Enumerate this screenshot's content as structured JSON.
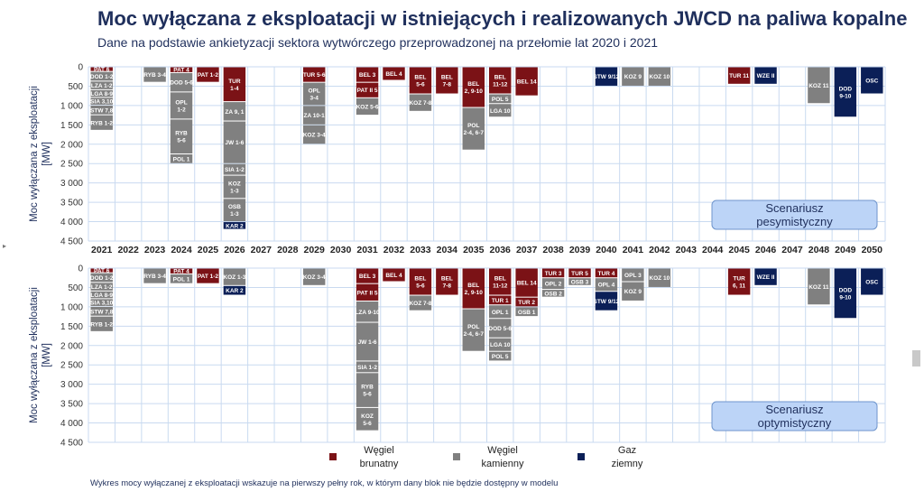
{
  "title": "Moc wyłączana z eksploatacji w istniejących i realizowanych JWCD na paliwa kopalne",
  "subtitle": "Dane na podstawie ankietyzacji sektora wytwórczego przeprowadzonej na przełomie lat 2020 i 2021",
  "footnote": "Wykres mocy wyłączanej z eksploatacji wskazuje na pierwszy pełny rok, w którym dany blok nie będzie dostępny w modelu",
  "colors": {
    "brunatny": "#7b1216",
    "kamienny": "#808080",
    "gaz": "#0b1f57",
    "grid": "#c9daf0",
    "scenario_box": "#bcd4f7"
  },
  "legend": [
    {
      "key": "brunatny",
      "label_line1": "Węgiel",
      "label_line2": "brunatny"
    },
    {
      "key": "kamienny",
      "label_line1": "Węgiel",
      "label_line2": "kamienny"
    },
    {
      "key": "gaz",
      "label_line1": "Gaz",
      "label_line2": "ziemny"
    }
  ],
  "chart_data": [
    {
      "type": "bar",
      "subtype": "stacked",
      "scenario_line1": "Scenariusz",
      "scenario_line2": "pesymistyczny",
      "ylabel_line1": "Moc wyłączana z eksploatacji",
      "ylabel_line2": "[MW]",
      "ylim": [
        0,
        4500
      ],
      "y_inverted": true,
      "yticks": [
        "0",
        "500",
        "1 000",
        "1 500",
        "2 000",
        "2 500",
        "3 000",
        "3 500",
        "4 000",
        "4 500"
      ],
      "categories": [
        "2021",
        "2022",
        "2023",
        "2024",
        "2025",
        "2026",
        "2027",
        "2028",
        "2029",
        "2030",
        "2031",
        "2032",
        "2033",
        "2034",
        "2035",
        "2036",
        "2037",
        "2038",
        "2039",
        "2040",
        "2041",
        "2042",
        "2043",
        "2044",
        "2045",
        "2046",
        "2047",
        "2048",
        "2049",
        "2050"
      ],
      "columns": [
        {
          "year": "2021",
          "blocks": [
            {
              "label": "PAT 6",
              "fuel": "brunatny",
              "value": 120
            },
            {
              "label": "DOD 1-2",
              "fuel": "kamienny",
              "value": 250
            },
            {
              "label": "LZA 1-2",
              "fuel": "kamienny",
              "value": 220
            },
            {
              "label": "LGA 8-9",
              "fuel": "kamienny",
              "value": 200
            },
            {
              "label": "SIA 3,10",
              "fuel": "kamienny",
              "value": 200
            },
            {
              "label": "STW 7,8",
              "fuel": "kamienny",
              "value": 250
            },
            {
              "label": "RYB 1-2",
              "fuel": "kamienny",
              "value": 400
            }
          ]
        },
        {
          "year": "2022",
          "blocks": []
        },
        {
          "year": "2023",
          "blocks": [
            {
              "label": "RYB 3-4",
              "fuel": "kamienny",
              "value": 400
            }
          ]
        },
        {
          "year": "2024",
          "blocks": [
            {
              "label": "PAT 4",
              "fuel": "brunatny",
              "value": 150
            },
            {
              "label": "DOD 5-6",
              "fuel": "kamienny",
              "value": 500
            },
            {
              "label": "OPL 1-2",
              "fuel": "kamienny",
              "value": 700
            },
            {
              "label": "RYB 5-6",
              "fuel": "kamienny",
              "value": 900
            },
            {
              "label": "POL 1",
              "fuel": "kamienny",
              "value": 250
            }
          ]
        },
        {
          "year": "2025",
          "blocks": [
            {
              "label": "PAT 1-2",
              "fuel": "brunatny",
              "value": 400
            }
          ]
        },
        {
          "year": "2026",
          "blocks": [
            {
              "label": "TUR 1-4",
              "fuel": "brunatny",
              "value": 900
            },
            {
              "label": "ZA 9, 1",
              "fuel": "kamienny",
              "value": 500
            },
            {
              "label": "JW 1-6",
              "fuel": "kamienny",
              "value": 1100
            },
            {
              "label": "SIA 1-2",
              "fuel": "kamienny",
              "value": 300
            },
            {
              "label": "KOZ 1-3",
              "fuel": "kamienny",
              "value": 600
            },
            {
              "label": "OSB 1-3",
              "fuel": "kamienny",
              "value": 600
            },
            {
              "label": "KAR 2",
              "fuel": "gaz",
              "value": 200
            }
          ]
        },
        {
          "year": "2027",
          "blocks": []
        },
        {
          "year": "2028",
          "blocks": []
        },
        {
          "year": "2029",
          "blocks": [
            {
              "label": "TUR 5-6",
              "fuel": "brunatny",
              "value": 400
            },
            {
              "label": "OPL 3-4",
              "fuel": "kamienny",
              "value": 600
            },
            {
              "label": "ZA 10-1",
              "fuel": "kamienny",
              "value": 500
            },
            {
              "label": "KOZ 3-4",
              "fuel": "kamienny",
              "value": 500
            }
          ]
        },
        {
          "year": "2030",
          "blocks": []
        },
        {
          "year": "2031",
          "blocks": [
            {
              "label": "BEL 3",
              "fuel": "brunatny",
              "value": 400
            },
            {
              "label": "PAT II 5",
              "fuel": "brunatny",
              "value": 400
            },
            {
              "label": "KOZ 5-6",
              "fuel": "kamienny",
              "value": 450
            }
          ]
        },
        {
          "year": "2032",
          "blocks": [
            {
              "label": "BEL 4",
              "fuel": "brunatny",
              "value": 350
            }
          ]
        },
        {
          "year": "2033",
          "blocks": [
            {
              "label": "BEL 5-6",
              "fuel": "brunatny",
              "value": 700
            },
            {
              "label": "KOZ 7-8",
              "fuel": "kamienny",
              "value": 450
            }
          ]
        },
        {
          "year": "2034",
          "blocks": [
            {
              "label": "BEL 7-8",
              "fuel": "brunatny",
              "value": 700
            }
          ]
        },
        {
          "year": "2035",
          "blocks": [
            {
              "label": "BEL 2, 9-10",
              "fuel": "brunatny",
              "value": 1050
            },
            {
              "label": "POL 2-4, 6-7",
              "fuel": "kamienny",
              "value": 1100
            }
          ]
        },
        {
          "year": "2036",
          "blocks": [
            {
              "label": "BEL 11-12",
              "fuel": "brunatny",
              "value": 700
            },
            {
              "label": "POL 5",
              "fuel": "kamienny",
              "value": 250
            },
            {
              "label": "LGA 10",
              "fuel": "kamienny",
              "value": 350
            }
          ]
        },
        {
          "year": "2037",
          "blocks": [
            {
              "label": "BEL 14",
              "fuel": "brunatny",
              "value": 750
            }
          ]
        },
        {
          "year": "2038",
          "blocks": []
        },
        {
          "year": "2039",
          "blocks": []
        },
        {
          "year": "2040",
          "blocks": [
            {
              "label": "STW 9/12",
              "fuel": "gaz",
              "value": 500
            }
          ]
        },
        {
          "year": "2041",
          "blocks": [
            {
              "label": "KOZ 9",
              "fuel": "kamienny",
              "value": 500
            }
          ]
        },
        {
          "year": "2042",
          "blocks": [
            {
              "label": "KOZ 10",
              "fuel": "kamienny",
              "value": 500
            }
          ]
        },
        {
          "year": "2043",
          "blocks": []
        },
        {
          "year": "2044",
          "blocks": []
        },
        {
          "year": "2045",
          "blocks": [
            {
              "label": "TUR 11",
              "fuel": "brunatny",
              "value": 450
            }
          ]
        },
        {
          "year": "2046",
          "blocks": [
            {
              "label": "WZE II",
              "fuel": "gaz",
              "value": 450
            }
          ]
        },
        {
          "year": "2047",
          "blocks": []
        },
        {
          "year": "2048",
          "blocks": [
            {
              "label": "KOZ 11",
              "fuel": "kamienny",
              "value": 950
            }
          ]
        },
        {
          "year": "2049",
          "blocks": [
            {
              "label": "DOD 9-10",
              "fuel": "gaz",
              "value": 1300
            }
          ]
        },
        {
          "year": "2050",
          "blocks": [
            {
              "label": "OSC",
              "fuel": "gaz",
              "value": 700
            }
          ]
        }
      ]
    },
    {
      "type": "bar",
      "subtype": "stacked",
      "scenario_line1": "Scenariusz",
      "scenario_line2": "optymistyczny",
      "ylabel_line1": "Moc wyłączana z eksploatacji",
      "ylabel_line2": "[MW]",
      "ylim": [
        0,
        4500
      ],
      "y_inverted": true,
      "yticks": [
        "0",
        "500",
        "1 000",
        "1 500",
        "2 000",
        "2 500",
        "3 000",
        "3 500",
        "4 000",
        "4 500"
      ],
      "categories": [
        "2021",
        "2022",
        "2023",
        "2024",
        "2025",
        "2026",
        "2027",
        "2028",
        "2029",
        "2030",
        "2031",
        "2032",
        "2033",
        "2034",
        "2035",
        "2036",
        "2037",
        "2038",
        "2039",
        "2040",
        "2041",
        "2042",
        "2043",
        "2044",
        "2045",
        "2046",
        "2047",
        "2048",
        "2049",
        "2050"
      ],
      "columns": [
        {
          "year": "2021",
          "blocks": [
            {
              "label": "PAT 6",
              "fuel": "brunatny",
              "value": 120
            },
            {
              "label": "DOD 1-2",
              "fuel": "kamienny",
              "value": 250
            },
            {
              "label": "LZA 1-2",
              "fuel": "kamienny",
              "value": 220
            },
            {
              "label": "LGA 8-9",
              "fuel": "kamienny",
              "value": 200
            },
            {
              "label": "SIA 3,10",
              "fuel": "kamienny",
              "value": 200
            },
            {
              "label": "STW 7,8",
              "fuel": "kamienny",
              "value": 250
            },
            {
              "label": "RYB 1-2",
              "fuel": "kamienny",
              "value": 400
            }
          ]
        },
        {
          "year": "2022",
          "blocks": []
        },
        {
          "year": "2023",
          "blocks": [
            {
              "label": "RYB 3-4",
              "fuel": "kamienny",
              "value": 400
            }
          ]
        },
        {
          "year": "2024",
          "blocks": [
            {
              "label": "PAT 4",
              "fuel": "brunatny",
              "value": 150
            },
            {
              "label": "POL 1",
              "fuel": "kamienny",
              "value": 250
            }
          ]
        },
        {
          "year": "2025",
          "blocks": [
            {
              "label": "PAT 1-2",
              "fuel": "brunatny",
              "value": 400
            }
          ]
        },
        {
          "year": "2026",
          "blocks": [
            {
              "label": "KOZ 1-3",
              "fuel": "kamienny",
              "value": 450
            },
            {
              "label": "KAR 2",
              "fuel": "gaz",
              "value": 250
            }
          ]
        },
        {
          "year": "2027",
          "blocks": []
        },
        {
          "year": "2028",
          "blocks": []
        },
        {
          "year": "2029",
          "blocks": [
            {
              "label": "KOZ 3-4",
              "fuel": "kamienny",
              "value": 450
            }
          ]
        },
        {
          "year": "2030",
          "blocks": []
        },
        {
          "year": "2031",
          "blocks": [
            {
              "label": "BEL 3",
              "fuel": "brunatny",
              "value": 400
            },
            {
              "label": "PAT II 5",
              "fuel": "brunatny",
              "value": 450
            },
            {
              "label": "LZA 9-10",
              "fuel": "kamienny",
              "value": 550
            },
            {
              "label": "JW 1-6",
              "fuel": "kamienny",
              "value": 1000
            },
            {
              "label": "SIA 1-2",
              "fuel": "kamienny",
              "value": 300
            },
            {
              "label": "RYB 5-6",
              "fuel": "kamienny",
              "value": 900
            },
            {
              "label": "KOZ 5-6",
              "fuel": "kamienny",
              "value": 600
            }
          ]
        },
        {
          "year": "2032",
          "blocks": [
            {
              "label": "BEL 4",
              "fuel": "brunatny",
              "value": 350
            }
          ]
        },
        {
          "year": "2033",
          "blocks": [
            {
              "label": "BEL 5-6",
              "fuel": "brunatny",
              "value": 700
            },
            {
              "label": "KOZ 7-8",
              "fuel": "kamienny",
              "value": 400
            }
          ]
        },
        {
          "year": "2034",
          "blocks": [
            {
              "label": "BEL 7-8",
              "fuel": "brunatny",
              "value": 700
            }
          ]
        },
        {
          "year": "2035",
          "blocks": [
            {
              "label": "BEL 2, 9-10",
              "fuel": "brunatny",
              "value": 1050
            },
            {
              "label": "POL 2-4, 6-7",
              "fuel": "kamienny",
              "value": 1100
            }
          ]
        },
        {
          "year": "2036",
          "blocks": [
            {
              "label": "BEL 11-12",
              "fuel": "brunatny",
              "value": 700
            },
            {
              "label": "TUR 1",
              "fuel": "brunatny",
              "value": 250
            },
            {
              "label": "OPL 1",
              "fuel": "kamienny",
              "value": 350
            },
            {
              "label": "DOD 5-6",
              "fuel": "kamienny",
              "value": 500
            },
            {
              "label": "LGA 10",
              "fuel": "kamienny",
              "value": 350
            },
            {
              "label": "POL 5",
              "fuel": "kamienny",
              "value": 250
            }
          ]
        },
        {
          "year": "2037",
          "blocks": [
            {
              "label": "BEL 14",
              "fuel": "brunatny",
              "value": 750
            },
            {
              "label": "TUR 2",
              "fuel": "brunatny",
              "value": 250
            },
            {
              "label": "OSB 1",
              "fuel": "kamienny",
              "value": 250
            }
          ]
        },
        {
          "year": "2038",
          "blocks": [
            {
              "label": "TUR 3",
              "fuel": "brunatny",
              "value": 250
            },
            {
              "label": "OPL 2",
              "fuel": "kamienny",
              "value": 300
            },
            {
              "label": "OSB 2",
              "fuel": "kamienny",
              "value": 200
            }
          ]
        },
        {
          "year": "2039",
          "blocks": [
            {
              "label": "TUR 5",
              "fuel": "brunatny",
              "value": 250
            },
            {
              "label": "OSB 3",
              "fuel": "kamienny",
              "value": 200
            }
          ]
        },
        {
          "year": "2040",
          "blocks": [
            {
              "label": "TUR 4",
              "fuel": "brunatny",
              "value": 250
            },
            {
              "label": "OPL 4",
              "fuel": "kamienny",
              "value": 350
            },
            {
              "label": "STW 9/12",
              "fuel": "gaz",
              "value": 500
            }
          ]
        },
        {
          "year": "2041",
          "blocks": [
            {
              "label": "OPL 3",
              "fuel": "kamienny",
              "value": 350
            },
            {
              "label": "KOZ 9",
              "fuel": "kamienny",
              "value": 500
            }
          ]
        },
        {
          "year": "2042",
          "blocks": [
            {
              "label": "KOZ 10",
              "fuel": "kamienny",
              "value": 500
            }
          ]
        },
        {
          "year": "2043",
          "blocks": []
        },
        {
          "year": "2044",
          "blocks": []
        },
        {
          "year": "2045",
          "blocks": [
            {
              "label": "TUR 6, 11",
              "fuel": "brunatny",
              "value": 700
            }
          ]
        },
        {
          "year": "2046",
          "blocks": [
            {
              "label": "WZE II",
              "fuel": "gaz",
              "value": 450
            }
          ]
        },
        {
          "year": "2047",
          "blocks": []
        },
        {
          "year": "2048",
          "blocks": [
            {
              "label": "KOZ 11",
              "fuel": "kamienny",
              "value": 950
            }
          ]
        },
        {
          "year": "2049",
          "blocks": [
            {
              "label": "DOD 9-10",
              "fuel": "gaz",
              "value": 1300
            }
          ]
        },
        {
          "year": "2050",
          "blocks": [
            {
              "label": "OSC",
              "fuel": "gaz",
              "value": 700
            }
          ]
        }
      ]
    }
  ]
}
